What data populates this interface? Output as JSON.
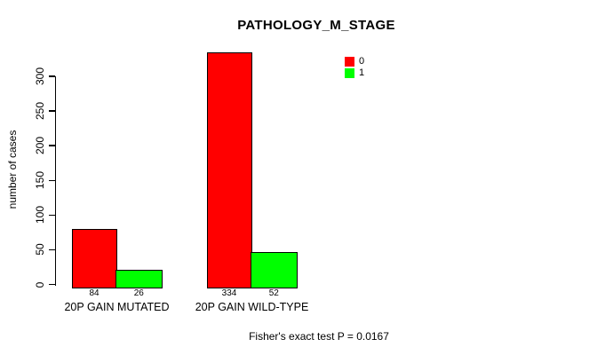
{
  "chart_data": {
    "type": "bar",
    "title": "PATHOLOGY_M_STAGE",
    "categories": [
      "20P GAIN MUTATED",
      "20P GAIN WILD-TYPE"
    ],
    "series": [
      {
        "name": "0",
        "color": "#ff0000",
        "values": [
          84,
          334
        ]
      },
      {
        "name": "1",
        "color": "#00ff00",
        "values": [
          26,
          52
        ]
      }
    ],
    "xlabel": "",
    "ylabel": "number of cases",
    "yticks": [
      0,
      50,
      100,
      150,
      200,
      250,
      300
    ],
    "ylim": [
      0,
      334
    ],
    "grid": false,
    "legend_position": "top-right-inside",
    "bar_value_labels": [
      "84",
      "26",
      "334",
      "52"
    ],
    "annotation": "Fisher's exact test P = 0.0167",
    "colors": {
      "series_0": "#ff0000",
      "series_1": "#00ff00",
      "axis": "#000000",
      "background": "#ffffff"
    }
  }
}
